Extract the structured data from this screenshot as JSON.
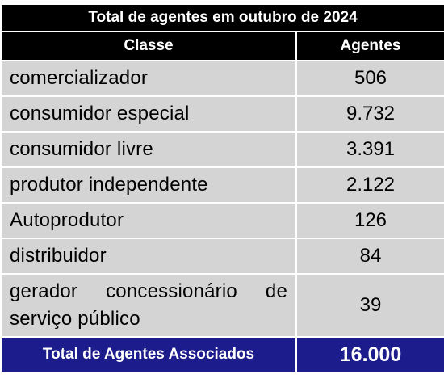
{
  "table": {
    "title": "Total de agentes em outubro de 2024",
    "headers": {
      "classe": "Classe",
      "agentes": "Agentes"
    },
    "rows": [
      {
        "classe": "comercializador",
        "agentes": "506"
      },
      {
        "classe": "consumidor especial",
        "agentes": "9.732"
      },
      {
        "classe": "consumidor livre",
        "agentes": "3.391"
      },
      {
        "classe": "produtor independente",
        "agentes": "2.122"
      },
      {
        "classe": "Autoprodutor",
        "agentes": "126"
      },
      {
        "classe": "distribuidor",
        "agentes": "84"
      },
      {
        "classe": "gerador concessionário de serviço público",
        "agentes": "39"
      }
    ],
    "total": {
      "label": "Total de Agentes Associados",
      "value": "16.000"
    }
  },
  "colors": {
    "header_bg": "#000000",
    "row_bg": "#d4d4d4",
    "total_bg": "#1c1c8c"
  }
}
